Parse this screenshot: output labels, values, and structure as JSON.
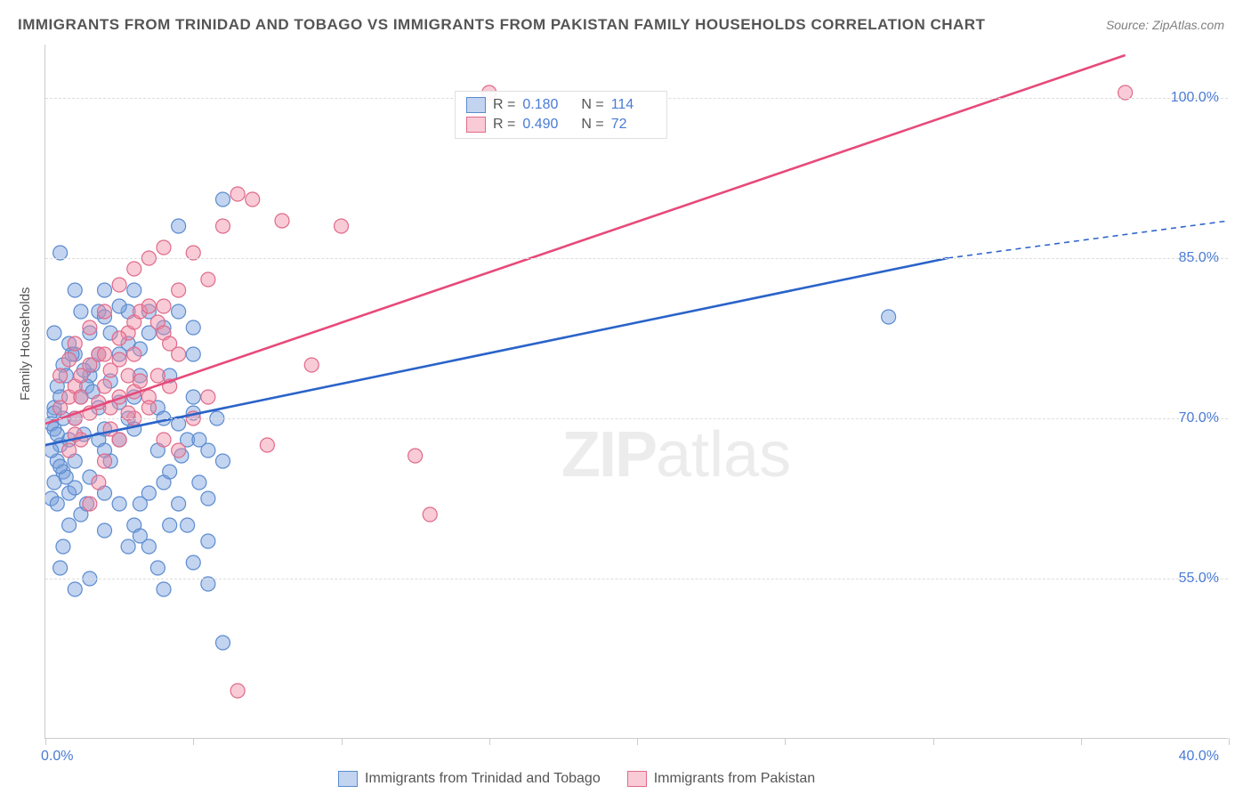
{
  "title": "IMMIGRANTS FROM TRINIDAD AND TOBAGO VS IMMIGRANTS FROM PAKISTAN FAMILY HOUSEHOLDS CORRELATION CHART",
  "source": "Source: ZipAtlas.com",
  "ylabel": "Family Households",
  "watermark_zip": "ZIP",
  "watermark_atlas": "atlas",
  "chart": {
    "type": "scatter",
    "xlim": [
      0,
      40
    ],
    "ylim": [
      40,
      105
    ],
    "xtick_positions": [
      0,
      5,
      10,
      15,
      20,
      25,
      30,
      35,
      40
    ],
    "ytick_labels": [
      {
        "y": 100.0,
        "label": "100.0%"
      },
      {
        "y": 85.0,
        "label": "85.0%"
      },
      {
        "y": 70.0,
        "label": "70.0%"
      },
      {
        "y": 55.0,
        "label": "55.0%"
      }
    ],
    "x_label_min": "0.0%",
    "x_label_max": "40.0%",
    "background_color": "#ffffff",
    "grid_color": "#dddddd",
    "series": [
      {
        "name": "Immigrants from Trinidad and Tobago",
        "color_fill": "rgba(120,160,220,0.45)",
        "color_stroke": "#5b8bd0",
        "marker_radius": 8,
        "regression": {
          "x1": 0,
          "y1": 67.5,
          "x2": 30.5,
          "y2": 85.0,
          "x2_dash": 40,
          "y2_dash": 88.5,
          "stroke": "#2a63c9",
          "stroke_width": 2.6
        },
        "R": "0.180",
        "N": "114",
        "points": [
          [
            0.2,
            62.5
          ],
          [
            0.3,
            64.0
          ],
          [
            0.4,
            66.0
          ],
          [
            0.5,
            67.5
          ],
          [
            0.3,
            69.0
          ],
          [
            0.6,
            65.0
          ],
          [
            0.8,
            63.0
          ],
          [
            0.4,
            62.0
          ],
          [
            0.7,
            64.5
          ],
          [
            0.5,
            65.5
          ],
          [
            0.2,
            69.5
          ],
          [
            0.3,
            71.0
          ],
          [
            0.8,
            68.0
          ],
          [
            1.0,
            70.0
          ],
          [
            1.2,
            72.0
          ],
          [
            0.5,
            85.5
          ],
          [
            1.5,
            74.0
          ],
          [
            1.0,
            66.0
          ],
          [
            1.3,
            68.5
          ],
          [
            1.8,
            71.0
          ],
          [
            1.4,
            73.0
          ],
          [
            2.0,
            69.0
          ],
          [
            1.6,
            75.0
          ],
          [
            2.2,
            78.0
          ],
          [
            1.8,
            80.0
          ],
          [
            2.5,
            76.0
          ],
          [
            2.0,
            82.0
          ],
          [
            2.8,
            70.0
          ],
          [
            2.5,
            68.0
          ],
          [
            3.0,
            72.0
          ],
          [
            2.2,
            66.0
          ],
          [
            3.2,
            74.0
          ],
          [
            2.8,
            80.0
          ],
          [
            3.5,
            78.0
          ],
          [
            3.0,
            69.0
          ],
          [
            3.8,
            71.0
          ],
          [
            3.2,
            62.0
          ],
          [
            4.0,
            64.0
          ],
          [
            3.5,
            58.0
          ],
          [
            4.2,
            60.0
          ],
          [
            3.8,
            56.0
          ],
          [
            4.5,
            62.0
          ],
          [
            4.0,
            70.0
          ],
          [
            4.8,
            68.0
          ],
          [
            4.2,
            74.0
          ],
          [
            5.0,
            78.5
          ],
          [
            4.5,
            88.0
          ],
          [
            5.2,
            64.0
          ],
          [
            4.8,
            60.0
          ],
          [
            5.5,
            58.5
          ],
          [
            5.0,
            72.0
          ],
          [
            5.8,
            70.0
          ],
          [
            5.2,
            68.0
          ],
          [
            6.0,
            90.5
          ],
          [
            5.5,
            62.5
          ],
          [
            2.0,
            63.0
          ],
          [
            1.5,
            64.5
          ],
          [
            1.0,
            63.5
          ],
          [
            0.8,
            60.0
          ],
          [
            0.6,
            58.0
          ],
          [
            1.2,
            61.0
          ],
          [
            1.4,
            62.0
          ],
          [
            2.5,
            62.0
          ],
          [
            3.0,
            60.0
          ],
          [
            3.5,
            63.0
          ],
          [
            2.0,
            59.5
          ],
          [
            2.8,
            58.0
          ],
          [
            3.2,
            59.0
          ],
          [
            1.0,
            54.0
          ],
          [
            1.5,
            55.0
          ],
          [
            4.0,
            54.0
          ],
          [
            5.0,
            56.5
          ],
          [
            5.5,
            54.5
          ],
          [
            6.0,
            49.0
          ],
          [
            2.5,
            71.5
          ],
          [
            2.2,
            73.5
          ],
          [
            1.8,
            76.0
          ],
          [
            1.5,
            78.0
          ],
          [
            1.2,
            80.0
          ],
          [
            1.0,
            82.0
          ],
          [
            0.8,
            77.0
          ],
          [
            0.6,
            75.0
          ],
          [
            0.4,
            73.0
          ],
          [
            0.3,
            78.0
          ],
          [
            2.0,
            79.5
          ],
          [
            2.5,
            80.5
          ],
          [
            3.0,
            82.0
          ],
          [
            3.5,
            80.0
          ],
          [
            4.0,
            78.5
          ],
          [
            4.5,
            80.0
          ],
          [
            5.0,
            76.0
          ],
          [
            2.8,
            77.0
          ],
          [
            3.2,
            76.5
          ],
          [
            1.0,
            76.0
          ],
          [
            1.3,
            74.5
          ],
          [
            1.6,
            72.5
          ],
          [
            0.5,
            72.0
          ],
          [
            0.7,
            74.0
          ],
          [
            0.9,
            76.0
          ],
          [
            4.5,
            69.5
          ],
          [
            5.0,
            70.5
          ],
          [
            5.5,
            67.0
          ],
          [
            6.0,
            66.0
          ],
          [
            3.8,
            67.0
          ],
          [
            4.2,
            65.0
          ],
          [
            4.6,
            66.5
          ],
          [
            1.8,
            68.0
          ],
          [
            2.0,
            67.0
          ],
          [
            0.5,
            56.0
          ],
          [
            28.5,
            79.5
          ],
          [
            0.3,
            70.5
          ],
          [
            0.2,
            67.0
          ],
          [
            0.4,
            68.5
          ],
          [
            0.6,
            70.0
          ]
        ]
      },
      {
        "name": "Immigrants from Pakistan",
        "color_fill": "rgba(240,140,165,0.45)",
        "color_stroke": "#e06a8a",
        "marker_radius": 8,
        "regression": {
          "x1": 0,
          "y1": 69.5,
          "x2": 36.5,
          "y2": 104.0,
          "stroke": "#e74a7a",
          "stroke_width": 2.6
        },
        "R": "0.490",
        "N": "72",
        "points": [
          [
            0.5,
            71.0
          ],
          [
            0.8,
            72.0
          ],
          [
            1.0,
            73.0
          ],
          [
            1.2,
            74.0
          ],
          [
            1.5,
            75.0
          ],
          [
            1.8,
            76.0
          ],
          [
            2.0,
            73.0
          ],
          [
            2.2,
            71.0
          ],
          [
            2.5,
            75.5
          ],
          [
            2.8,
            78.0
          ],
          [
            3.0,
            79.0
          ],
          [
            3.2,
            80.0
          ],
          [
            3.5,
            80.5
          ],
          [
            3.8,
            79.0
          ],
          [
            4.0,
            78.0
          ],
          [
            4.2,
            77.0
          ],
          [
            4.5,
            76.0
          ],
          [
            3.0,
            70.0
          ],
          [
            2.5,
            68.0
          ],
          [
            2.0,
            66.0
          ],
          [
            1.8,
            64.0
          ],
          [
            1.5,
            62.0
          ],
          [
            1.2,
            68.0
          ],
          [
            1.0,
            70.0
          ],
          [
            2.5,
            72.0
          ],
          [
            2.8,
            74.0
          ],
          [
            3.0,
            76.0
          ],
          [
            2.2,
            69.0
          ],
          [
            3.5,
            72.0
          ],
          [
            3.8,
            74.0
          ],
          [
            4.0,
            80.5
          ],
          [
            4.5,
            82.0
          ],
          [
            5.0,
            85.5
          ],
          [
            5.5,
            83.0
          ],
          [
            6.0,
            88.0
          ],
          [
            6.5,
            91.0
          ],
          [
            7.0,
            90.5
          ],
          [
            8.0,
            88.5
          ],
          [
            9.0,
            75.0
          ],
          [
            10.0,
            88.0
          ],
          [
            4.0,
            68.0
          ],
          [
            4.5,
            67.0
          ],
          [
            5.0,
            70.0
          ],
          [
            5.5,
            72.0
          ],
          [
            3.5,
            85.0
          ],
          [
            4.0,
            86.0
          ],
          [
            3.0,
            84.0
          ],
          [
            2.5,
            82.5
          ],
          [
            2.0,
            80.0
          ],
          [
            1.5,
            78.5
          ],
          [
            1.0,
            77.0
          ],
          [
            0.8,
            75.5
          ],
          [
            0.5,
            74.0
          ],
          [
            7.5,
            67.5
          ],
          [
            6.5,
            44.5
          ],
          [
            12.5,
            66.5
          ],
          [
            13.0,
            61.0
          ],
          [
            15.0,
            100.5
          ],
          [
            36.5,
            100.5
          ],
          [
            2.0,
            76.0
          ],
          [
            2.5,
            77.5
          ],
          [
            3.0,
            72.5
          ],
          [
            3.2,
            73.5
          ],
          [
            1.2,
            72.0
          ],
          [
            1.5,
            70.5
          ],
          [
            1.0,
            68.5
          ],
          [
            0.8,
            67.0
          ],
          [
            2.8,
            70.5
          ],
          [
            3.5,
            71.0
          ],
          [
            1.8,
            71.5
          ],
          [
            2.2,
            74.5
          ],
          [
            4.2,
            73.0
          ]
        ]
      }
    ]
  },
  "legend_bottom": {
    "series1": "Immigrants from Trinidad and Tobago",
    "series2": "Immigrants from Pakistan"
  },
  "legend_top": {
    "r_label": "R =",
    "n_label": "N ="
  }
}
